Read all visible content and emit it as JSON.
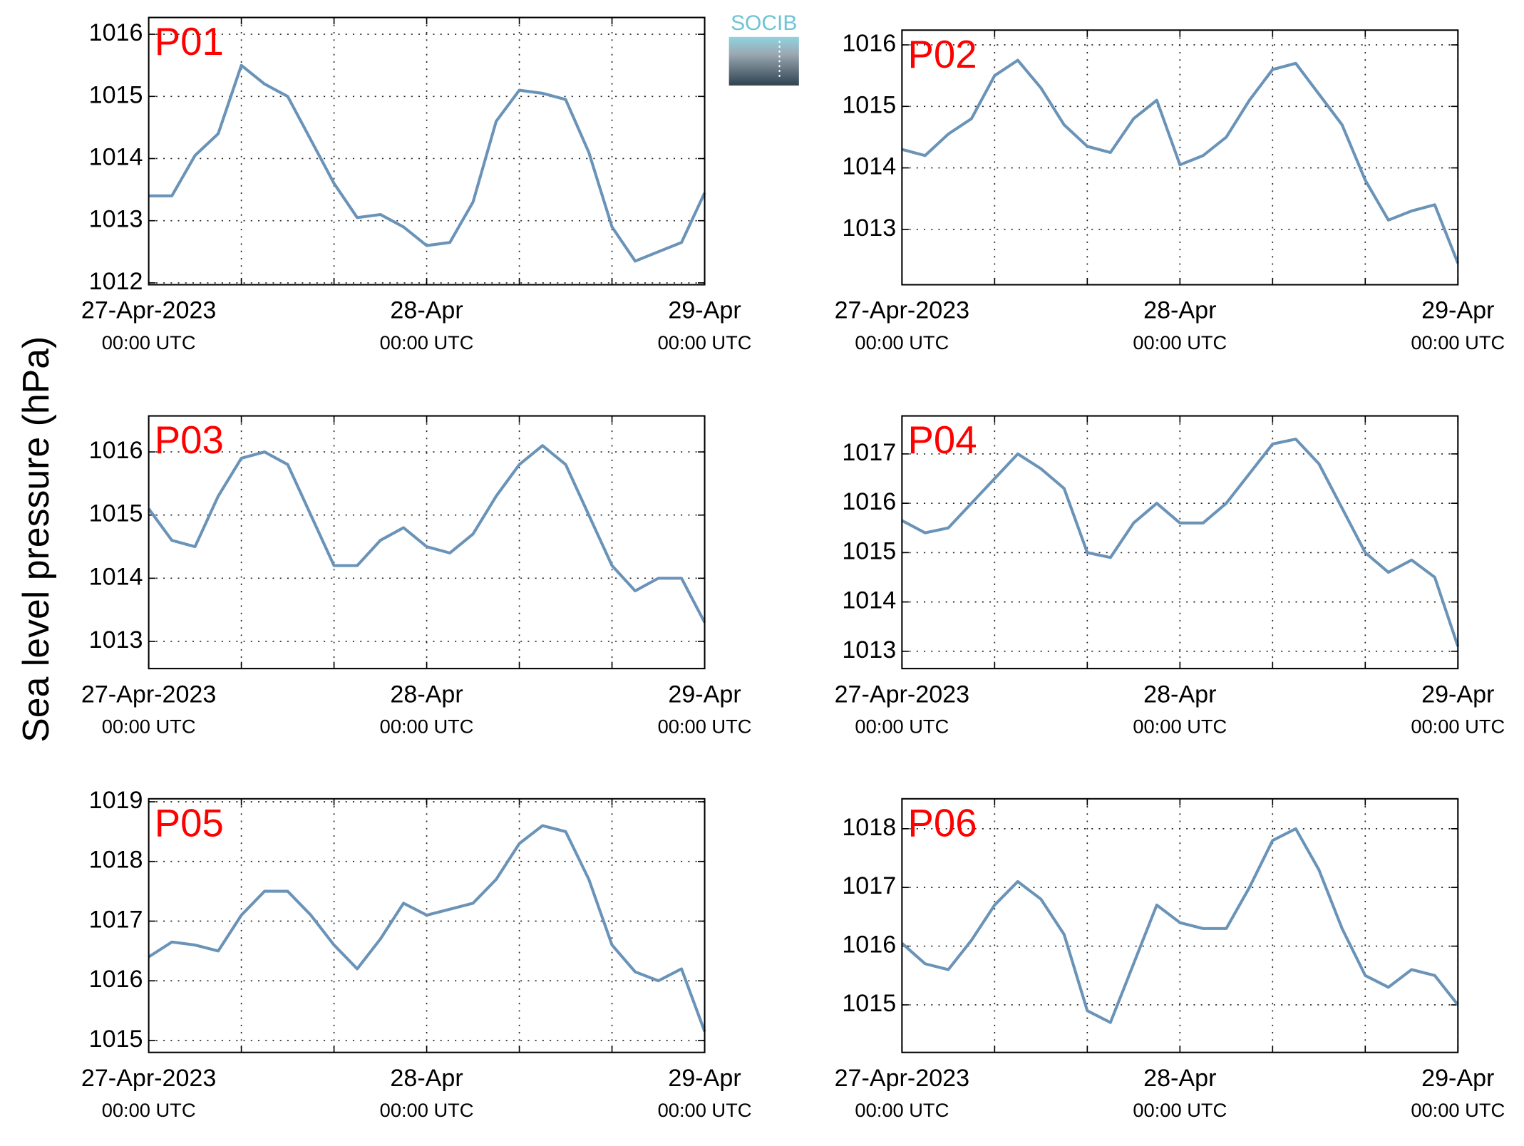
{
  "ylabel": "Sea level pressure (hPa)",
  "logo": "SOCIB",
  "chart_data": [
    {
      "type": "line",
      "title": "P01",
      "x": [
        0,
        2,
        4,
        6,
        8,
        10,
        12,
        14,
        16,
        18,
        20,
        22,
        24,
        26,
        28,
        30,
        32,
        34,
        36,
        38,
        40,
        42,
        44,
        46,
        48
      ],
      "series": [
        {
          "color": "#6a93b8",
          "values": [
            1013.4,
            1013.4,
            1014.05,
            1014.4,
            1015.5,
            1015.2,
            1015.0,
            1014.3,
            1013.6,
            1013.05,
            1013.1,
            1012.9,
            1012.6,
            1012.65,
            1013.3,
            1014.6,
            1015.1,
            1015.05,
            1014.95,
            1014.1,
            1012.9,
            1012.35,
            1012.5,
            1012.65,
            1013.45
          ]
        }
      ],
      "xlim": [
        0,
        48
      ],
      "xticks": [
        {
          "value": 0,
          "label": "27-Apr-2023"
        },
        {
          "value": 24,
          "label": "28-Apr"
        },
        {
          "value": 48,
          "label": "29-Apr"
        }
      ],
      "xtick_sublabel": "00:00 UTC",
      "xminorticks": [
        8,
        16,
        32,
        40
      ],
      "ylim": [
        1011.97,
        1016.27
      ],
      "yticks": [
        1012,
        1013,
        1014,
        1015,
        1016
      ],
      "grid": true
    },
    {
      "type": "line",
      "title": "P02",
      "x": [
        0,
        2,
        4,
        6,
        8,
        10,
        12,
        14,
        16,
        18,
        20,
        22,
        24,
        26,
        28,
        30,
        32,
        34,
        36,
        38,
        40,
        42,
        44,
        46,
        48
      ],
      "series": [
        {
          "color": "#6a93b8",
          "values": [
            1014.3,
            1014.2,
            1014.55,
            1014.8,
            1015.5,
            1015.75,
            1015.3,
            1014.7,
            1014.35,
            1014.25,
            1014.8,
            1015.1,
            1014.05,
            1014.2,
            1014.5,
            1015.1,
            1015.6,
            1015.7,
            1015.2,
            1014.7,
            1013.8,
            1013.15,
            1013.3,
            1013.4,
            1012.45
          ]
        }
      ],
      "xlim": [
        0,
        48
      ],
      "xticks": [
        {
          "value": 0,
          "label": "27-Apr-2023"
        },
        {
          "value": 24,
          "label": "28-Apr"
        },
        {
          "value": 48,
          "label": "29-Apr"
        }
      ],
      "xtick_sublabel": "00:00 UTC",
      "xminorticks": [
        8,
        16,
        32,
        40
      ],
      "ylim": [
        1012.1,
        1016.24
      ],
      "yticks": [
        1013,
        1014,
        1015,
        1016
      ],
      "grid": true
    },
    {
      "type": "line",
      "title": "P03",
      "x": [
        0,
        2,
        4,
        6,
        8,
        10,
        12,
        14,
        16,
        18,
        20,
        22,
        24,
        26,
        28,
        30,
        32,
        34,
        36,
        38,
        40,
        42,
        44,
        46,
        48
      ],
      "series": [
        {
          "color": "#6a93b8",
          "values": [
            1015.1,
            1014.6,
            1014.5,
            1015.3,
            1015.9,
            1016.0,
            1015.8,
            1015.0,
            1014.2,
            1014.2,
            1014.6,
            1014.8,
            1014.5,
            1014.4,
            1014.7,
            1015.3,
            1015.8,
            1016.1,
            1015.8,
            1015.0,
            1014.2,
            1013.8,
            1014.0,
            1014.0,
            1013.3
          ]
        }
      ],
      "xlim": [
        0,
        48
      ],
      "xticks": [
        {
          "value": 0,
          "label": "27-Apr-2023"
        },
        {
          "value": 24,
          "label": "28-Apr"
        },
        {
          "value": 48,
          "label": "29-Apr"
        }
      ],
      "xtick_sublabel": "00:00 UTC",
      "xminorticks": [
        8,
        16,
        32,
        40
      ],
      "ylim": [
        1012.57,
        1016.57
      ],
      "yticks": [
        1013,
        1014,
        1015,
        1016
      ],
      "grid": true
    },
    {
      "type": "line",
      "title": "P04",
      "x": [
        0,
        2,
        4,
        6,
        8,
        10,
        12,
        14,
        16,
        18,
        20,
        22,
        24,
        26,
        28,
        30,
        32,
        34,
        36,
        38,
        40,
        42,
        44,
        46,
        48
      ],
      "series": [
        {
          "color": "#6a93b8",
          "values": [
            1015.65,
            1015.4,
            1015.5,
            1016.0,
            1016.5,
            1017.0,
            1016.7,
            1016.3,
            1015.0,
            1014.9,
            1015.6,
            1016.0,
            1015.6,
            1015.6,
            1016.0,
            1016.6,
            1017.2,
            1017.3,
            1016.8,
            1015.9,
            1015.0,
            1014.6,
            1014.85,
            1014.5,
            1013.1
          ]
        }
      ],
      "xlim": [
        0,
        48
      ],
      "xticks": [
        {
          "value": 0,
          "label": "27-Apr-2023"
        },
        {
          "value": 24,
          "label": "28-Apr"
        },
        {
          "value": 48,
          "label": "29-Apr"
        }
      ],
      "xtick_sublabel": "00:00 UTC",
      "xminorticks": [
        8,
        16,
        32,
        40
      ],
      "ylim": [
        1012.65,
        1017.77
      ],
      "yticks": [
        1013,
        1014,
        1015,
        1016,
        1017
      ],
      "grid": true
    },
    {
      "type": "line",
      "title": "P05",
      "x": [
        0,
        2,
        4,
        6,
        8,
        10,
        12,
        14,
        16,
        18,
        20,
        22,
        24,
        26,
        28,
        30,
        32,
        34,
        36,
        38,
        40,
        42,
        44,
        46,
        48
      ],
      "series": [
        {
          "color": "#6a93b8",
          "values": [
            1016.4,
            1016.65,
            1016.6,
            1016.5,
            1017.1,
            1017.5,
            1017.5,
            1017.1,
            1016.6,
            1016.2,
            1016.7,
            1017.3,
            1017.1,
            1017.2,
            1017.3,
            1017.7,
            1018.3,
            1018.6,
            1018.5,
            1017.7,
            1016.6,
            1016.15,
            1016.0,
            1016.2,
            1015.15
          ]
        }
      ],
      "xlim": [
        0,
        48
      ],
      "xticks": [
        {
          "value": 0,
          "label": "27-Apr-2023"
        },
        {
          "value": 24,
          "label": "28-Apr"
        },
        {
          "value": 48,
          "label": "29-Apr"
        }
      ],
      "xtick_sublabel": "00:00 UTC",
      "xminorticks": [
        8,
        16,
        32,
        40
      ],
      "ylim": [
        1014.8,
        1019.05
      ],
      "yticks": [
        1015,
        1016,
        1017,
        1018,
        1019
      ],
      "grid": true
    },
    {
      "type": "line",
      "title": "P06",
      "x": [
        0,
        2,
        4,
        6,
        8,
        10,
        12,
        14,
        16,
        18,
        20,
        22,
        24,
        26,
        28,
        30,
        32,
        34,
        36,
        38,
        40,
        42,
        44,
        46,
        48
      ],
      "series": [
        {
          "color": "#6a93b8",
          "values": [
            1016.05,
            1015.7,
            1015.6,
            1016.1,
            1016.7,
            1017.1,
            1016.8,
            1016.2,
            1014.9,
            1014.7,
            1015.7,
            1016.7,
            1016.4,
            1016.3,
            1016.3,
            1017.0,
            1017.8,
            1018.0,
            1017.3,
            1016.3,
            1015.5,
            1015.3,
            1015.6,
            1015.5,
            1015.0
          ]
        }
      ],
      "xlim": [
        0,
        48
      ],
      "xticks": [
        {
          "value": 0,
          "label": "27-Apr-2023"
        },
        {
          "value": 24,
          "label": "28-Apr"
        },
        {
          "value": 48,
          "label": "29-Apr"
        }
      ],
      "xtick_sublabel": "00:00 UTC",
      "xminorticks": [
        8,
        16,
        32,
        40
      ],
      "ylim": [
        1014.19,
        1018.51
      ],
      "yticks": [
        1015,
        1016,
        1017,
        1018
      ],
      "grid": true
    }
  ]
}
